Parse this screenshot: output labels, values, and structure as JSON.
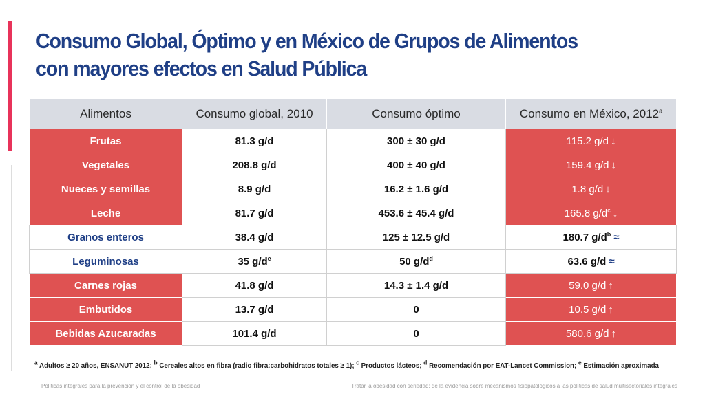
{
  "title": {
    "line1": "Consumo Global, Óptimo y en México de Grupos de Alimentos",
    "line2": "con mayores efectos en Salud Pública"
  },
  "table": {
    "headers": {
      "food": "Alimentos",
      "global": "Consumo global, 2010",
      "optimal": "Consumo óptimo",
      "mexico": "Consumo en México, 2012",
      "mexico_sup": "a"
    },
    "rows": [
      {
        "food": "Frutas",
        "global": "81.3 g/d",
        "optimal": "300 ± 30 g/d",
        "mexico": "115.2 g/d",
        "mexico_sup": "",
        "trend": "↓",
        "highlight": true
      },
      {
        "food": "Vegetales",
        "global": "208.8 g/d",
        "optimal": "400 ± 40 g/d",
        "mexico": "159.4 g/d",
        "mexico_sup": "",
        "trend": "↓",
        "highlight": true
      },
      {
        "food": "Nueces y semillas",
        "global": "8.9 g/d",
        "optimal": "16.2 ± 1.6 g/d",
        "mexico": "1.8 g/d",
        "mexico_sup": "",
        "trend": "↓",
        "highlight": true
      },
      {
        "food": "Leche",
        "global": "81.7 g/d",
        "optimal": "453.6 ± 45.4 g/d",
        "mexico": "165.8  g/d",
        "mexico_sup": "c",
        "trend": "↓",
        "highlight": true
      },
      {
        "food": "Granos enteros",
        "global": "38.4 g/d",
        "optimal": "125 ± 12.5 g/d",
        "mexico": "180.7 g/d",
        "mexico_sup": "b",
        "trend": "≈",
        "highlight": false
      },
      {
        "food": "Leguminosas",
        "global": "35 g/d",
        "global_sup": "e",
        "optimal": "50 g/d",
        "optimal_sup": "d",
        "mexico": "63.6 g/d",
        "mexico_sup": "",
        "trend": "≈",
        "highlight": false
      },
      {
        "food": "Carnes rojas",
        "global": "41.8 g/d",
        "optimal": "14.3 ± 1.4 g/d",
        "mexico": "59.0 g/d",
        "mexico_sup": "",
        "trend": "↑",
        "highlight": true
      },
      {
        "food": "Embutidos",
        "global": "13.7 g/d",
        "optimal": "0",
        "mexico": "10.5 g/d",
        "mexico_sup": "",
        "trend": "↑",
        "highlight": true
      },
      {
        "food": "Bebidas Azucaradas",
        "global": "101.4 g/d",
        "optimal": "0",
        "mexico": "580.6 g/d",
        "mexico_sup": "",
        "trend": "↑",
        "highlight": true
      }
    ]
  },
  "footnote": {
    "a_sup": "a",
    "a": " Adultos ≥ 20 años, ENSANUT 2012; ",
    "b_sup": "b",
    "b": " Cereales altos en fibra (radio fibra:carbohidratos totales ≥ 1); ",
    "c_sup": "c",
    "c": " Productos lácteos; ",
    "d_sup": "d",
    "d": " Recomendación por EAT-Lancet Commission; ",
    "e_sup": "e",
    "e": " Estimación aproximada"
  },
  "footer": {
    "left": "Políticas integrales para la prevención y el control de la obesidad",
    "right": "Tratar la obesidad con seriedad: de la evidencia sobre mecanismos fisiopatológicos a las políticas de salud multisectoriales integrales"
  },
  "colors": {
    "title": "#1f3f86",
    "highlight_red": "#df5252",
    "header_gray": "#d9dce3",
    "accent_pink": "#e8335a"
  }
}
